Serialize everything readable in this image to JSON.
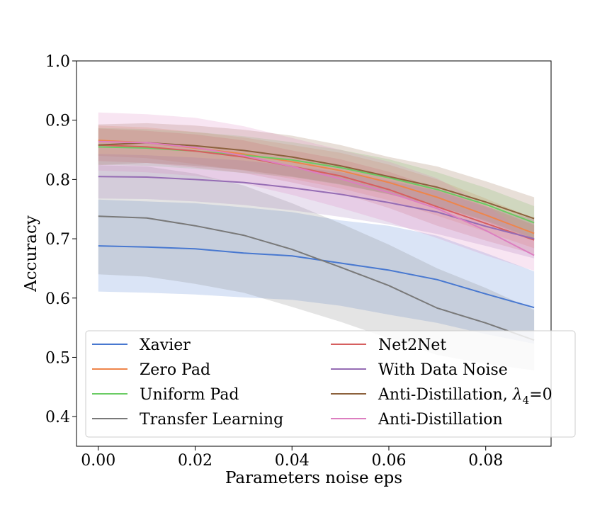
{
  "chart_data": {
    "type": "line",
    "xlabel": "Parameters noise eps",
    "ylabel": "Accuracy",
    "xlim": [
      -0.0045,
      0.0935
    ],
    "ylim": [
      0.35,
      1.0
    ],
    "x_ticks": [
      0.0,
      0.02,
      0.04,
      0.06,
      0.08
    ],
    "x_tick_labels": [
      "0.00",
      "0.02",
      "0.04",
      "0.06",
      "0.08"
    ],
    "y_ticks": [
      0.4,
      0.5,
      0.6,
      0.7,
      0.8,
      0.9,
      1.0
    ],
    "y_tick_labels": [
      "0.4",
      "0.5",
      "0.6",
      "0.7",
      "0.8",
      "0.9",
      "1.0"
    ],
    "grid": false,
    "legend_position": "lower-right",
    "legend_columns": 2,
    "x": [
      0.0,
      0.01,
      0.02,
      0.03,
      0.04,
      0.05,
      0.06,
      0.07,
      0.08,
      0.09
    ],
    "series": [
      {
        "name": "Xavier",
        "color": "#4878d0",
        "values": [
          0.688,
          0.686,
          0.683,
          0.676,
          0.671,
          0.659,
          0.647,
          0.631,
          0.607,
          0.584
        ],
        "lower": [
          0.611,
          0.609,
          0.606,
          0.601,
          0.597,
          0.587,
          0.572,
          0.558,
          0.539,
          0.523
        ],
        "upper": [
          0.766,
          0.763,
          0.76,
          0.753,
          0.745,
          0.731,
          0.722,
          0.705,
          0.676,
          0.645
        ]
      },
      {
        "name": "Zero Pad",
        "color": "#ee854a",
        "values": [
          0.866,
          0.862,
          0.853,
          0.843,
          0.83,
          0.815,
          0.795,
          0.77,
          0.74,
          0.709
        ],
        "lower": [
          0.84,
          0.836,
          0.826,
          0.815,
          0.801,
          0.785,
          0.765,
          0.739,
          0.712,
          0.684
        ],
        "upper": [
          0.891,
          0.888,
          0.88,
          0.871,
          0.858,
          0.845,
          0.825,
          0.8,
          0.768,
          0.734
        ]
      },
      {
        "name": "Uniform Pad",
        "color": "#6acc64",
        "values": [
          0.855,
          0.853,
          0.848,
          0.841,
          0.833,
          0.82,
          0.803,
          0.783,
          0.758,
          0.727
        ],
        "lower": [
          0.825,
          0.823,
          0.818,
          0.811,
          0.804,
          0.791,
          0.775,
          0.755,
          0.731,
          0.7
        ],
        "upper": [
          0.887,
          0.885,
          0.88,
          0.873,
          0.863,
          0.85,
          0.834,
          0.812,
          0.786,
          0.755
        ]
      },
      {
        "name": "Transfer Learning",
        "color": "#797979",
        "values": [
          0.738,
          0.735,
          0.722,
          0.706,
          0.682,
          0.652,
          0.621,
          0.583,
          0.558,
          0.529
        ],
        "lower": [
          0.64,
          0.636,
          0.624,
          0.609,
          0.585,
          0.56,
          0.532,
          0.504,
          0.489,
          0.478
        ],
        "upper": [
          0.824,
          0.822,
          0.81,
          0.79,
          0.76,
          0.726,
          0.69,
          0.65,
          0.617,
          0.58
        ]
      },
      {
        "name": "Net2Net",
        "color": "#d65f5f",
        "values": [
          0.858,
          0.855,
          0.848,
          0.838,
          0.822,
          0.806,
          0.783,
          0.754,
          0.726,
          0.698
        ],
        "lower": [
          0.831,
          0.828,
          0.82,
          0.811,
          0.795,
          0.777,
          0.752,
          0.722,
          0.697,
          0.674
        ],
        "upper": [
          0.886,
          0.882,
          0.876,
          0.866,
          0.849,
          0.834,
          0.813,
          0.785,
          0.755,
          0.723
        ]
      },
      {
        "name": "With Data Noise",
        "color": "#956cb4",
        "values": [
          0.805,
          0.804,
          0.8,
          0.795,
          0.786,
          0.775,
          0.761,
          0.745,
          0.721,
          0.7
        ],
        "lower": [
          0.768,
          0.767,
          0.763,
          0.757,
          0.748,
          0.737,
          0.724,
          0.708,
          0.688,
          0.667
        ],
        "upper": [
          0.843,
          0.841,
          0.837,
          0.832,
          0.823,
          0.812,
          0.798,
          0.781,
          0.754,
          0.733
        ]
      },
      {
        "name": "Anti-Distillation, λ4=0",
        "color": "#8c613c",
        "values": [
          0.858,
          0.862,
          0.857,
          0.849,
          0.838,
          0.823,
          0.805,
          0.787,
          0.762,
          0.734
        ],
        "lower": [
          0.824,
          0.828,
          0.823,
          0.816,
          0.805,
          0.792,
          0.775,
          0.755,
          0.729,
          0.699
        ],
        "upper": [
          0.893,
          0.895,
          0.891,
          0.884,
          0.874,
          0.858,
          0.838,
          0.822,
          0.797,
          0.77
        ]
      },
      {
        "name": "Anti-Distillation",
        "color": "#dc7ec0",
        "values": [
          0.864,
          0.862,
          0.854,
          0.84,
          0.822,
          0.801,
          0.778,
          0.751,
          0.714,
          0.672
        ],
        "lower": [
          0.815,
          0.812,
          0.806,
          0.793,
          0.774,
          0.752,
          0.728,
          0.701,
          0.672,
          0.646
        ],
        "upper": [
          0.913,
          0.91,
          0.904,
          0.89,
          0.87,
          0.85,
          0.83,
          0.802,
          0.757,
          0.7
        ]
      }
    ]
  },
  "legend": {
    "col1": [
      "Xavier",
      "Zero Pad",
      "Uniform Pad",
      "Transfer Learning"
    ],
    "col2": [
      "Net2Net",
      "With Data Noise",
      "Anti-Distillation, λ4=0",
      "Anti-Distillation"
    ],
    "col2_labels": {
      "net2net": "Net2Net",
      "data_noise": "With Data Noise",
      "anti_dist_prefix": "Anti-Distillation, ",
      "lambda_symbol": "λ",
      "lambda_sub": "4",
      "anti_dist_suffix": "=0",
      "anti_dist": "Anti-Distillation"
    }
  }
}
